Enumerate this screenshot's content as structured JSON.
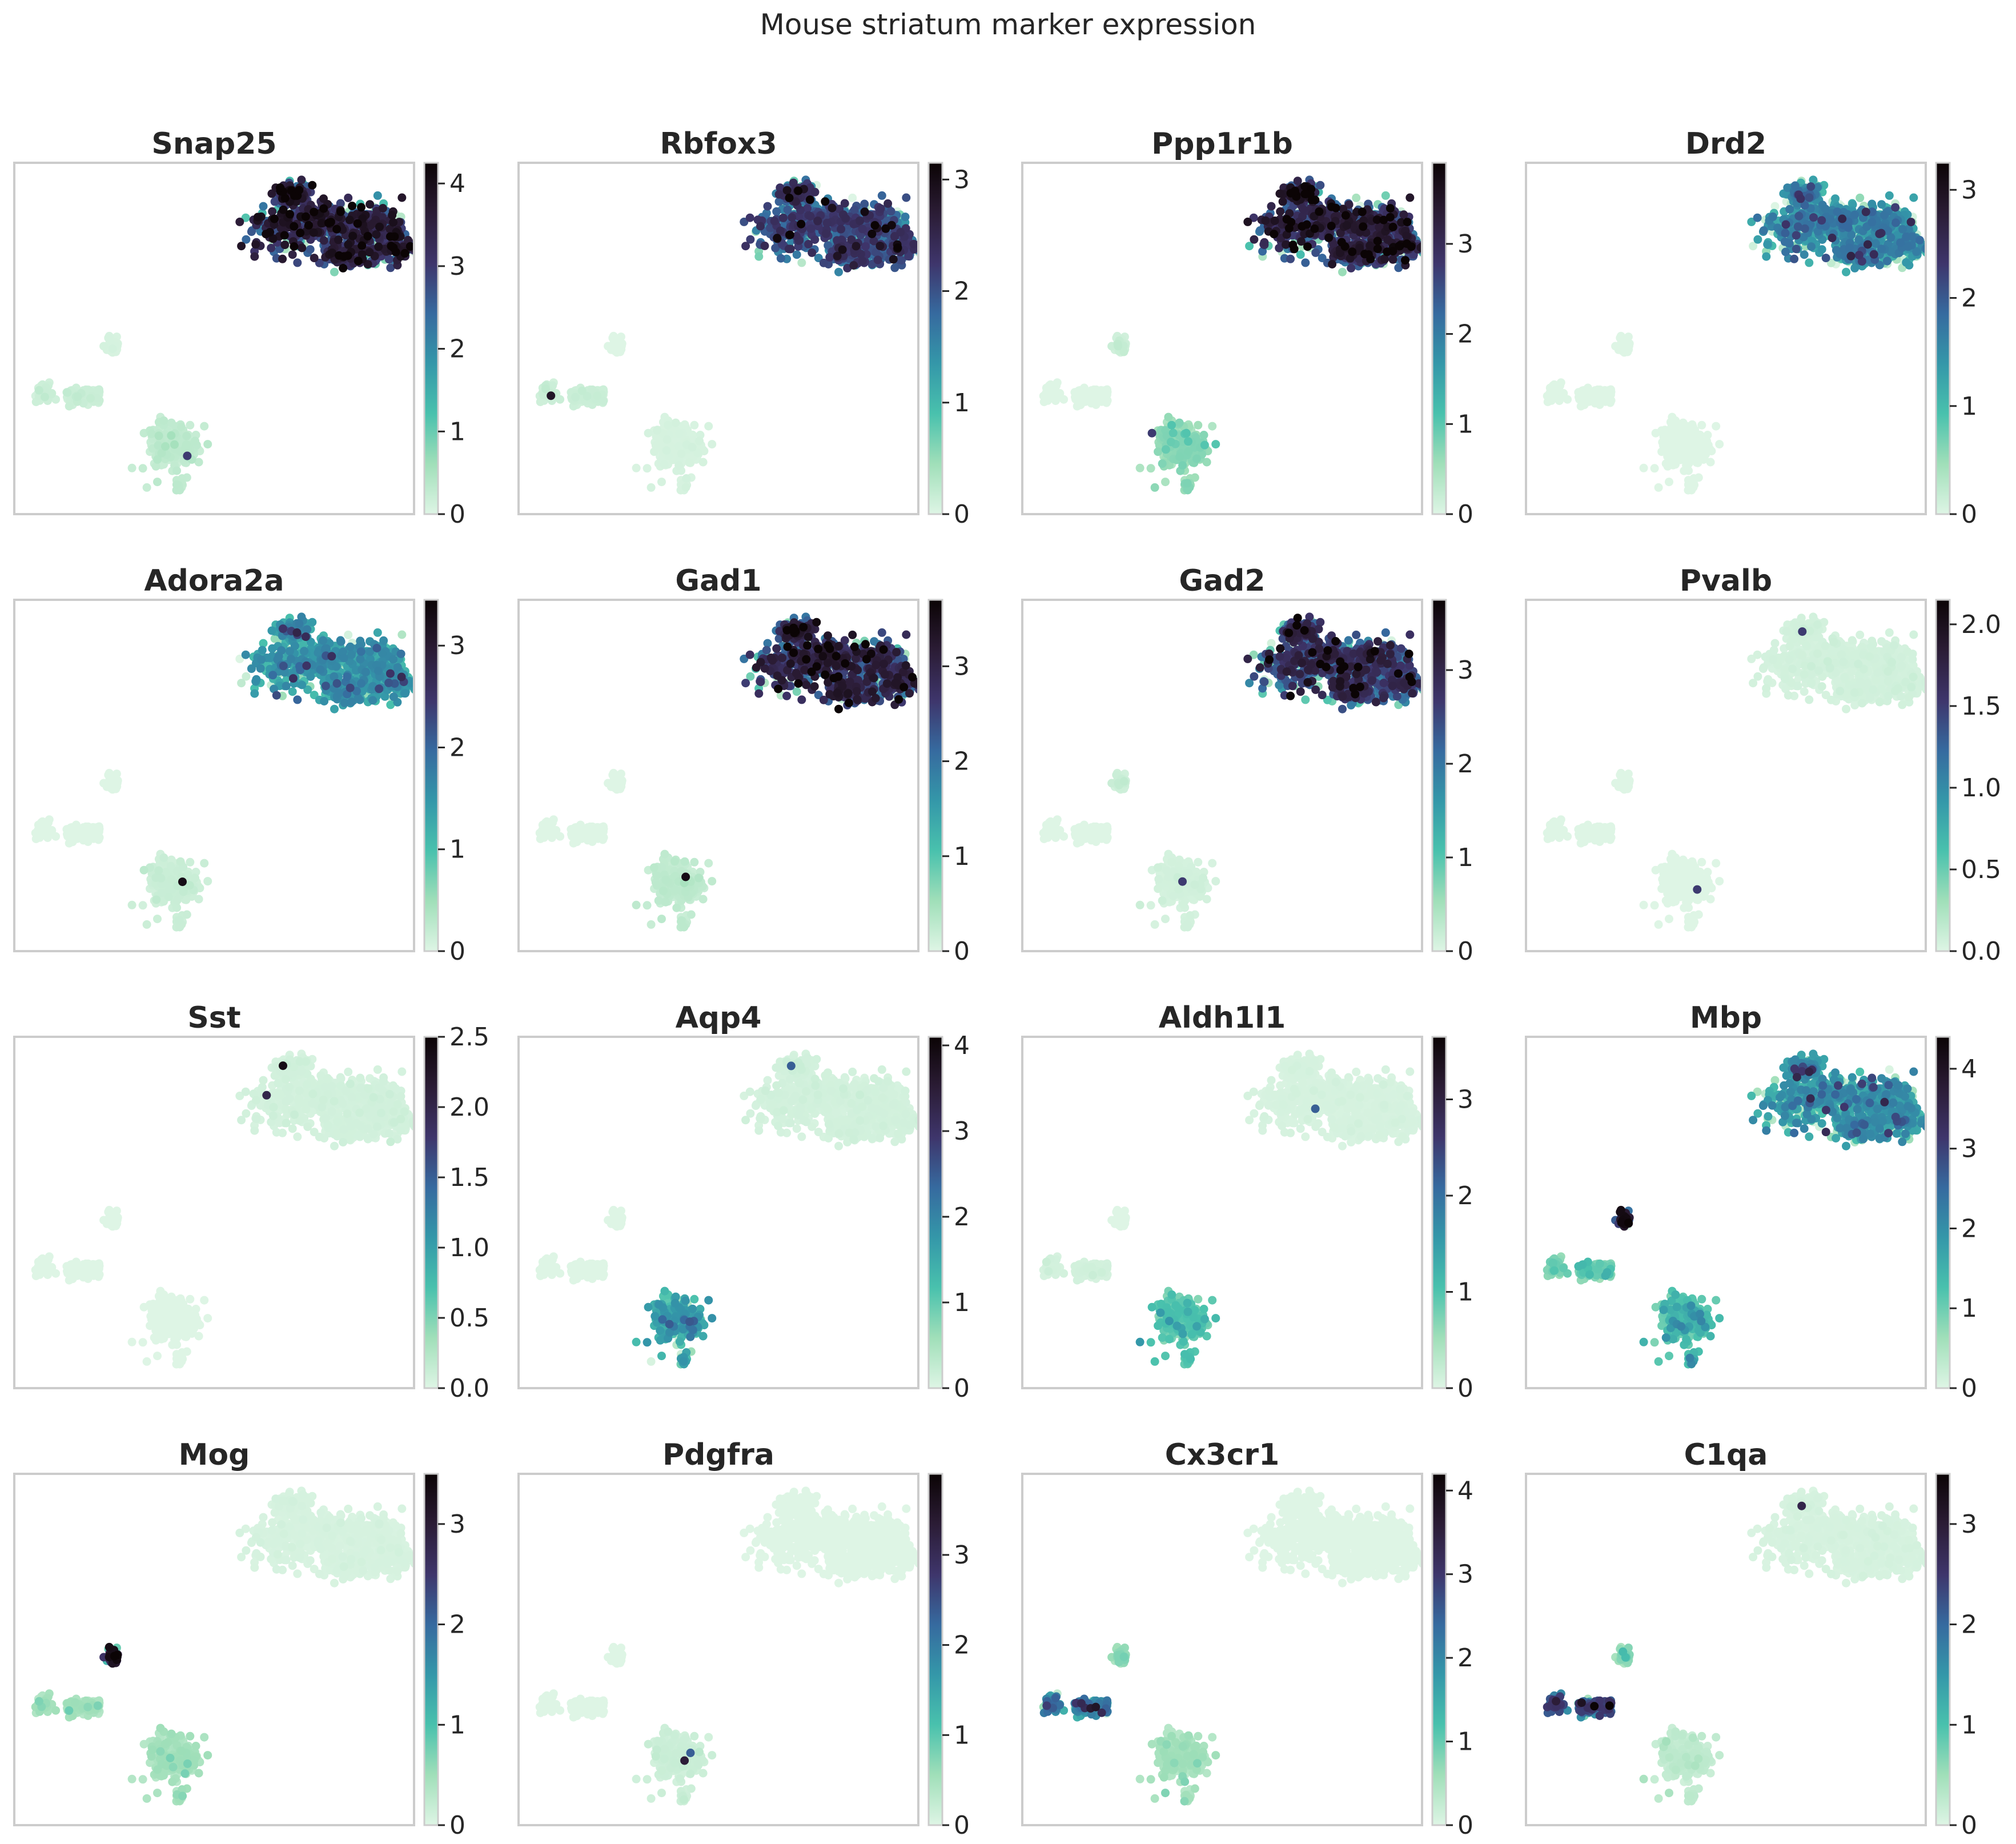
{
  "figure": {
    "title": "Mouse striatum marker expression"
  },
  "chart_data": {
    "type": "scatter",
    "colormap": {
      "name": "mako_r",
      "stops": [
        "#def5e5",
        "#a0dfb9",
        "#49c1ad",
        "#3497a9",
        "#366a9f",
        "#3e356b",
        "#2b1c35",
        "#0b0405"
      ]
    },
    "clusters": [
      {
        "name": "neurons",
        "type": "blob",
        "cx": 0.83,
        "cy": 0.8,
        "spread": 0.14
      },
      {
        "name": "oligodendrocytes",
        "type": "small",
        "cx": 0.24,
        "cy": 0.48,
        "spread": 0.02
      },
      {
        "name": "microglia_strip",
        "type": "strip",
        "cx": 0.12,
        "cy": 0.32,
        "spread": 0.08
      },
      {
        "name": "astro_opc",
        "type": "medium",
        "cx": 0.4,
        "cy": 0.17,
        "spread": 0.06
      }
    ],
    "panels": [
      {
        "title": "Snap25",
        "ticks": [
          "0",
          "1",
          "2",
          "3",
          "4"
        ],
        "vmax": 4.25,
        "levels": {
          "neurons": 0.95,
          "oligodendrocytes": 0.02,
          "microglia_strip": 0.05,
          "astro_opc": 0.08
        },
        "spots": [
          {
            "cluster": "astro_opc",
            "value": 0.7
          }
        ]
      },
      {
        "title": "Rbfox3",
        "ticks": [
          "0",
          "1",
          "2",
          "3"
        ],
        "vmax": 3.15,
        "levels": {
          "neurons": 0.78,
          "oligodendrocytes": 0.0,
          "microglia_strip": 0.05,
          "astro_opc": 0.02
        },
        "spots": [
          {
            "cluster": "microglia_strip",
            "value": 0.9
          }
        ]
      },
      {
        "title": "Ppp1r1b",
        "ticks": [
          "0",
          "1",
          "2",
          "3"
        ],
        "vmax": 3.9,
        "levels": {
          "neurons": 0.92,
          "oligodendrocytes": 0.05,
          "microglia_strip": 0.0,
          "astro_opc": 0.2
        },
        "spots": [
          {
            "cluster": "astro_opc",
            "value": 0.7
          }
        ]
      },
      {
        "title": "Drd2",
        "ticks": [
          "0",
          "1",
          "2",
          "3"
        ],
        "vmax": 3.25,
        "levels": {
          "neurons": 0.55,
          "oligodendrocytes": 0.0,
          "microglia_strip": 0.0,
          "astro_opc": 0.0
        },
        "spots": []
      },
      {
        "title": "Adora2a",
        "ticks": [
          "0",
          "1",
          "2",
          "3"
        ],
        "vmax": 3.45,
        "levels": {
          "neurons": 0.5,
          "oligodendrocytes": 0.0,
          "microglia_strip": 0.0,
          "astro_opc": 0.05
        },
        "spots": [
          {
            "cluster": "astro_opc",
            "value": 0.95
          }
        ]
      },
      {
        "title": "Gad1",
        "ticks": [
          "0",
          "1",
          "2",
          "3"
        ],
        "vmax": 3.7,
        "levels": {
          "neurons": 0.9,
          "oligodendrocytes": 0.0,
          "microglia_strip": 0.0,
          "astro_opc": 0.08
        },
        "spots": [
          {
            "cluster": "astro_opc",
            "value": 0.95
          }
        ]
      },
      {
        "title": "Gad2",
        "ticks": [
          "0",
          "1",
          "2",
          "3"
        ],
        "vmax": 3.75,
        "levels": {
          "neurons": 0.85,
          "oligodendrocytes": 0.05,
          "microglia_strip": 0.0,
          "astro_opc": 0.03
        },
        "spots": [
          {
            "cluster": "astro_opc",
            "value": 0.7
          }
        ]
      },
      {
        "title": "Pvalb",
        "ticks": [
          "0.0",
          "0.5",
          "1.0",
          "1.5",
          "2.0"
        ],
        "vmax": 2.15,
        "levels": {
          "neurons": 0.03,
          "oligodendrocytes": 0.0,
          "microglia_strip": 0.0,
          "astro_opc": 0.0
        },
        "spots": [
          {
            "cluster": "neurons",
            "value": 0.7
          },
          {
            "cluster": "astro_opc",
            "value": 0.7
          }
        ]
      },
      {
        "title": "Sst",
        "ticks": [
          "0.0",
          "0.5",
          "1.0",
          "1.5",
          "2.0",
          "2.5"
        ],
        "vmax": 2.5,
        "levels": {
          "neurons": 0.03,
          "oligodendrocytes": 0.0,
          "microglia_strip": 0.0,
          "astro_opc": 0.0
        },
        "spots": [
          {
            "cluster": "neurons",
            "value": 0.95
          },
          {
            "cluster": "neurons",
            "value": 0.8
          }
        ]
      },
      {
        "title": "Aqp4",
        "ticks": [
          "0",
          "1",
          "2",
          "3",
          "4"
        ],
        "vmax": 4.1,
        "levels": {
          "neurons": 0.03,
          "oligodendrocytes": 0.0,
          "microglia_strip": 0.0,
          "astro_opc": 0.45
        },
        "spots": [
          {
            "cluster": "neurons",
            "value": 0.6
          }
        ]
      },
      {
        "title": "Aldh1l1",
        "ticks": [
          "0",
          "1",
          "2",
          "3"
        ],
        "vmax": 3.65,
        "levels": {
          "neurons": 0.02,
          "oligodendrocytes": 0.0,
          "microglia_strip": 0.03,
          "astro_opc": 0.3
        },
        "spots": [
          {
            "cluster": "neurons",
            "value": 0.6
          }
        ]
      },
      {
        "title": "Mbp",
        "ticks": [
          "0",
          "1",
          "2",
          "3",
          "4"
        ],
        "vmax": 4.4,
        "levels": {
          "neurons": 0.5,
          "oligodendrocytes": 0.98,
          "microglia_strip": 0.25,
          "astro_opc": 0.35
        },
        "spots": []
      },
      {
        "title": "Mog",
        "ticks": [
          "0",
          "1",
          "2",
          "3"
        ],
        "vmax": 3.5,
        "levels": {
          "neurons": 0.02,
          "oligodendrocytes": 0.97,
          "microglia_strip": 0.15,
          "astro_opc": 0.15
        },
        "spots": []
      },
      {
        "title": "Pdgfra",
        "ticks": [
          "0",
          "1",
          "2",
          "3"
        ],
        "vmax": 3.9,
        "levels": {
          "neurons": 0.0,
          "oligodendrocytes": 0.0,
          "microglia_strip": 0.0,
          "astro_opc": 0.05
        },
        "spots": [
          {
            "cluster": "astro_opc",
            "value": 0.85
          },
          {
            "cluster": "astro_opc",
            "value": 0.6
          }
        ]
      },
      {
        "title": "Cx3cr1",
        "ticks": [
          "0",
          "1",
          "2",
          "3",
          "4"
        ],
        "vmax": 4.2,
        "levels": {
          "neurons": 0.0,
          "oligodendrocytes": 0.2,
          "microglia_strip": 0.6,
          "astro_opc": 0.15
        },
        "spots": []
      },
      {
        "title": "C1qa",
        "ticks": [
          "0",
          "1",
          "2",
          "3"
        ],
        "vmax": 3.5,
        "levels": {
          "neurons": 0.02,
          "oligodendrocytes": 0.2,
          "microglia_strip": 0.75,
          "astro_opc": 0.08
        },
        "spots": [
          {
            "cluster": "neurons",
            "value": 0.8
          }
        ]
      }
    ]
  }
}
